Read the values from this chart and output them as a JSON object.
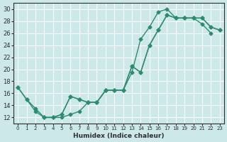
{
  "line1_x": [
    0,
    1,
    2,
    3,
    4,
    5,
    6,
    7,
    8,
    9,
    10,
    11,
    12,
    13,
    14,
    15,
    16,
    17,
    18,
    19,
    20,
    21,
    22
  ],
  "line1_y": [
    17.0,
    15.0,
    13.0,
    12.0,
    12.0,
    12.0,
    12.5,
    13.0,
    14.5,
    14.5,
    16.5,
    16.5,
    16.5,
    19.5,
    25.0,
    27.0,
    29.5,
    30.0,
    28.5,
    28.5,
    28.5,
    27.5,
    26.0
  ],
  "line2_x": [
    3,
    4,
    5,
    6,
    7,
    8,
    9,
    10,
    11,
    12,
    13,
    14,
    15,
    16,
    17,
    18,
    19,
    20,
    21,
    22,
    23
  ],
  "line2_y": [
    12.0,
    12.0,
    12.5,
    15.5,
    15.0,
    14.5,
    14.5,
    16.5,
    16.5,
    16.5,
    20.5,
    19.5,
    24.0,
    26.5,
    29.0,
    28.5,
    28.5,
    28.5,
    28.5,
    27.0,
    26.5
  ],
  "line3_x": [
    0,
    1,
    2,
    3,
    4,
    5,
    6,
    7,
    8,
    9,
    10,
    11,
    12,
    13,
    14,
    15,
    16,
    17,
    18,
    19,
    20,
    21,
    22,
    23
  ],
  "line3_y": [
    17.0,
    15.0,
    13.5,
    12.0,
    12.0,
    12.5,
    15.5,
    15.0,
    14.5,
    14.5,
    16.5,
    16.5,
    16.5,
    20.5,
    19.5,
    24.0,
    26.5,
    29.0,
    28.5,
    28.5,
    28.5,
    28.5,
    27.0,
    26.5
  ],
  "color": "#2e8b6e",
  "bg_color": "#cde8e8",
  "grid_color": "#b0d0d0",
  "xlabel": "Humidex (Indice chaleur)",
  "ylim": [
    11,
    31
  ],
  "xlim": [
    -0.5,
    23.5
  ],
  "yticks": [
    12,
    14,
    16,
    18,
    20,
    22,
    24,
    26,
    28,
    30
  ],
  "xticks": [
    0,
    1,
    2,
    3,
    4,
    5,
    6,
    7,
    8,
    9,
    10,
    11,
    12,
    13,
    14,
    15,
    16,
    17,
    18,
    19,
    20,
    21,
    22,
    23
  ]
}
